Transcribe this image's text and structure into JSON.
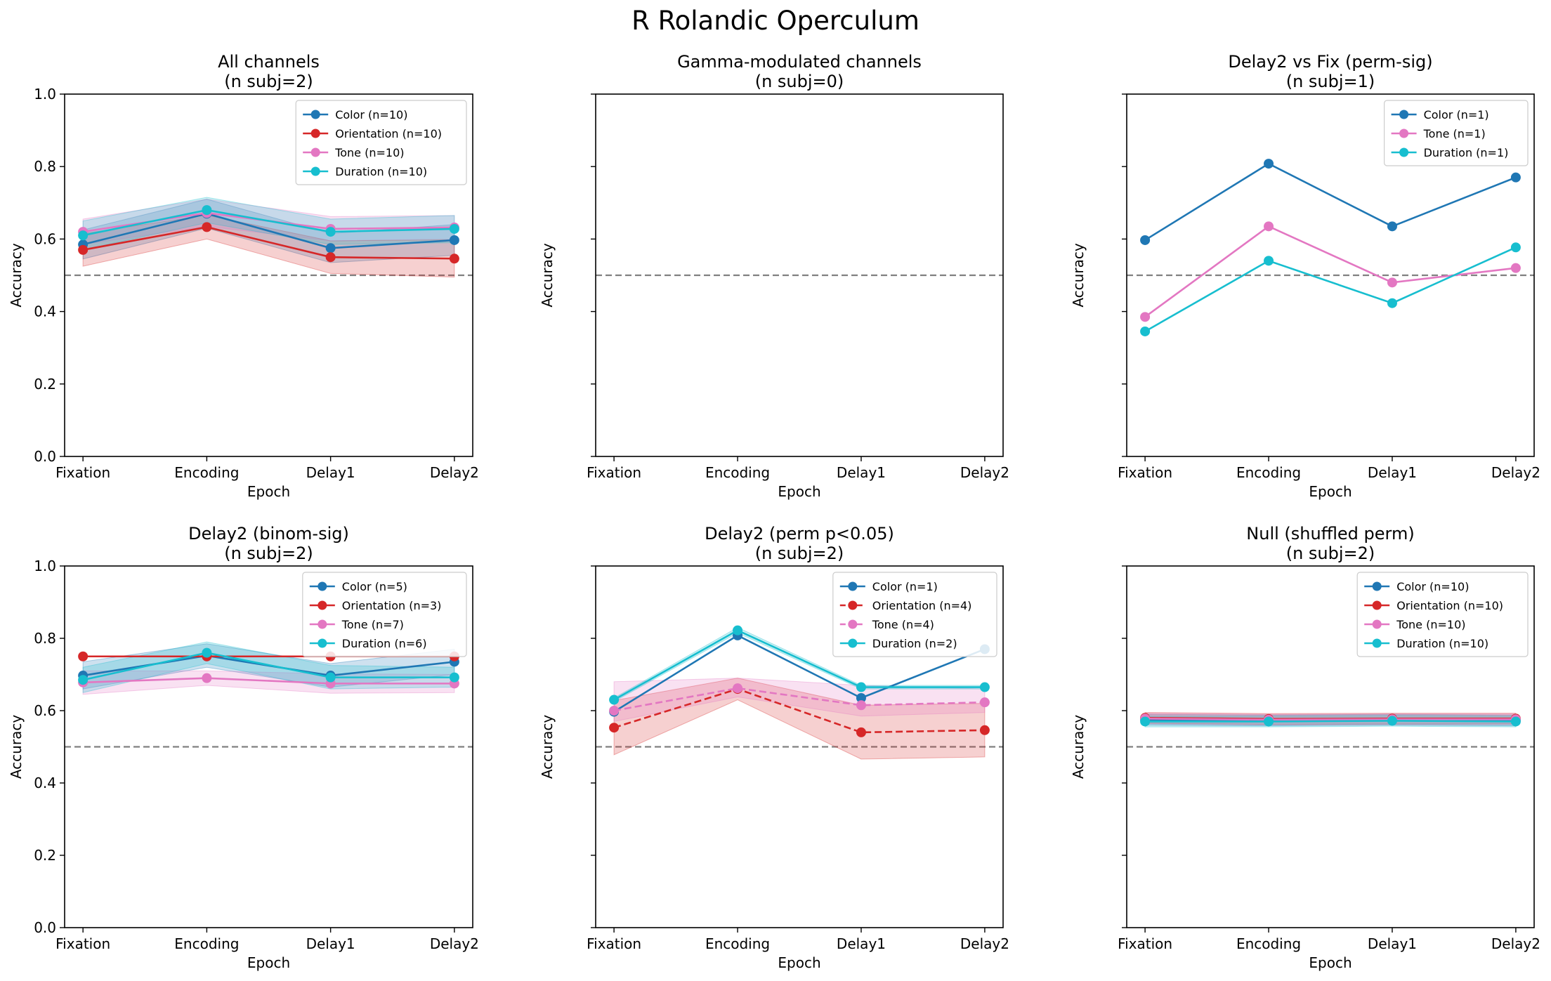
{
  "suptitle": "R Rolandic Operculum",
  "colors": {
    "Color": "#1f77b4",
    "Orientation": "#d62728",
    "Tone": "#e377c2",
    "Duration": "#17becf",
    "chance_line": "#808080"
  },
  "chart_data": [
    {
      "type": "line",
      "title": [
        "All channels",
        "(n subj=2)"
      ],
      "xlabel": "Epoch",
      "ylabel": "Accuracy",
      "categories": [
        "Fixation",
        "Encoding",
        "Delay1",
        "Delay2"
      ],
      "ylim": [
        0,
        1
      ],
      "yticks": [
        "0.0",
        "0.2",
        "0.4",
        "0.6",
        "0.8",
        "1.0"
      ],
      "chance": 0.5,
      "legend": "top-right",
      "series": [
        {
          "name": "Color (n=10)",
          "key": "Color",
          "dashed": false,
          "values": [
            0.585,
            0.67,
            0.575,
            0.597
          ],
          "band": [
            [
              0.545,
              0.625
            ],
            [
              0.63,
              0.71
            ],
            [
              0.535,
              0.615
            ],
            [
              0.555,
              0.64
            ]
          ]
        },
        {
          "name": "Orientation (n=10)",
          "key": "Orientation",
          "dashed": false,
          "values": [
            0.57,
            0.633,
            0.55,
            0.546
          ],
          "band": [
            [
              0.525,
              0.615
            ],
            [
              0.6,
              0.666
            ],
            [
              0.505,
              0.595
            ],
            [
              0.495,
              0.598
            ]
          ]
        },
        {
          "name": "Tone (n=10)",
          "key": "Tone",
          "dashed": false,
          "values": [
            0.62,
            0.672,
            0.628,
            0.632
          ],
          "band": [
            [
              0.585,
              0.655
            ],
            [
              0.635,
              0.71
            ],
            [
              0.595,
              0.662
            ],
            [
              0.6,
              0.665
            ]
          ]
        },
        {
          "name": "Duration (n=10)",
          "key": "Duration",
          "dashed": false,
          "values": [
            0.61,
            0.68,
            0.62,
            0.628
          ],
          "band": [
            [
              0.57,
              0.65
            ],
            [
              0.645,
              0.715
            ],
            [
              0.585,
              0.655
            ],
            [
              0.59,
              0.665
            ]
          ]
        }
      ]
    },
    {
      "type": "line",
      "title": [
        "Gamma-modulated channels",
        "(n subj=0)"
      ],
      "xlabel": "Epoch",
      "ylabel": "Accuracy",
      "categories": [
        "Fixation",
        "Encoding",
        "Delay1",
        "Delay2"
      ],
      "ylim": [
        0,
        1
      ],
      "yticks": [
        "",
        "",
        "",
        "",
        "",
        ""
      ],
      "chance": 0.5,
      "legend": "",
      "series": []
    },
    {
      "type": "line",
      "title": [
        "Delay2 vs Fix (perm-sig)",
        "(n subj=1)"
      ],
      "xlabel": "Epoch",
      "ylabel": "Accuracy",
      "categories": [
        "Fixation",
        "Encoding",
        "Delay1",
        "Delay2"
      ],
      "ylim": [
        0,
        1
      ],
      "yticks": [
        "",
        "",
        "",
        "",
        "",
        ""
      ],
      "chance": 0.5,
      "legend": "top-right",
      "series": [
        {
          "name": "Color (n=1)",
          "key": "Color",
          "dashed": false,
          "values": [
            0.597,
            0.808,
            0.635,
            0.77
          ],
          "band": null
        },
        {
          "name": "Tone (n=1)",
          "key": "Tone",
          "dashed": false,
          "values": [
            0.385,
            0.635,
            0.48,
            0.52
          ],
          "band": null
        },
        {
          "name": "Duration (n=1)",
          "key": "Duration",
          "dashed": false,
          "values": [
            0.345,
            0.54,
            0.423,
            0.577
          ],
          "band": null
        }
      ]
    },
    {
      "type": "line",
      "title": [
        "Delay2 (binom-sig)",
        "(n subj=2)"
      ],
      "xlabel": "Epoch",
      "ylabel": "Accuracy",
      "categories": [
        "Fixation",
        "Encoding",
        "Delay1",
        "Delay2"
      ],
      "ylim": [
        0,
        1
      ],
      "yticks": [
        "0.0",
        "0.2",
        "0.4",
        "0.6",
        "0.8",
        "1.0"
      ],
      "chance": 0.5,
      "legend": "top-right",
      "series": [
        {
          "name": "Color (n=5)",
          "key": "Color",
          "dashed": false,
          "values": [
            0.697,
            0.752,
            0.697,
            0.735
          ],
          "band": [
            [
              0.66,
              0.735
            ],
            [
              0.72,
              0.785
            ],
            [
              0.665,
              0.73
            ],
            [
              0.7,
              0.77
            ]
          ]
        },
        {
          "name": "Orientation (n=3)",
          "key": "Orientation",
          "dashed": false,
          "values": [
            0.75,
            0.75,
            0.75,
            0.75
          ],
          "band": null
        },
        {
          "name": "Tone (n=7)",
          "key": "Tone",
          "dashed": false,
          "values": [
            0.678,
            0.69,
            0.675,
            0.675
          ],
          "band": [
            [
              0.645,
              0.71
            ],
            [
              0.67,
              0.71
            ],
            [
              0.648,
              0.702
            ],
            [
              0.65,
              0.7
            ]
          ]
        },
        {
          "name": "Duration (n=6)",
          "key": "Duration",
          "dashed": false,
          "values": [
            0.685,
            0.76,
            0.692,
            0.692
          ],
          "band": [
            [
              0.65,
              0.72
            ],
            [
              0.73,
              0.79
            ],
            [
              0.66,
              0.725
            ],
            [
              0.665,
              0.72
            ]
          ]
        }
      ]
    },
    {
      "type": "line",
      "title": [
        "Delay2 (perm p<0.05)",
        "(n subj=2)"
      ],
      "xlabel": "Epoch",
      "ylabel": "Accuracy",
      "categories": [
        "Fixation",
        "Encoding",
        "Delay1",
        "Delay2"
      ],
      "ylim": [
        0,
        1
      ],
      "yticks": [
        "",
        "",
        "",
        "",
        "",
        ""
      ],
      "chance": 0.5,
      "legend": "top-right",
      "series": [
        {
          "name": "Color (n=1)",
          "key": "Color",
          "dashed": false,
          "values": [
            0.597,
            0.808,
            0.635,
            0.77
          ],
          "band": null
        },
        {
          "name": "Orientation (n=4)",
          "key": "Orientation",
          "dashed": true,
          "values": [
            0.553,
            0.66,
            0.54,
            0.546
          ],
          "band": [
            [
              0.478,
              0.628
            ],
            [
              0.63,
              0.69
            ],
            [
              0.466,
              0.615
            ],
            [
              0.472,
              0.62
            ]
          ]
        },
        {
          "name": "Tone (n=4)",
          "key": "Tone",
          "dashed": true,
          "values": [
            0.6,
            0.662,
            0.615,
            0.623
          ],
          "band": [
            [
              0.57,
              0.68
            ],
            [
              0.638,
              0.69
            ],
            [
              0.585,
              0.67
            ],
            [
              0.595,
              0.66
            ]
          ]
        },
        {
          "name": "Duration (n=2)",
          "key": "Duration",
          "dashed": false,
          "values": [
            0.63,
            0.822,
            0.665,
            0.665
          ],
          "band": [
            [
              0.625,
              0.635
            ],
            [
              0.815,
              0.83
            ],
            [
              0.66,
              0.67
            ],
            [
              0.66,
              0.67
            ]
          ]
        }
      ]
    },
    {
      "type": "line",
      "title": [
        "Null (shuffled perm)",
        "(n subj=2)"
      ],
      "xlabel": "Epoch",
      "ylabel": "Accuracy",
      "categories": [
        "Fixation",
        "Encoding",
        "Delay1",
        "Delay2"
      ],
      "ylim": [
        0,
        1
      ],
      "yticks": [
        "",
        "",
        "",
        "",
        "",
        ""
      ],
      "chance": 0.5,
      "legend": "top-right",
      "series": [
        {
          "name": "Color (n=10)",
          "key": "Color",
          "dashed": false,
          "values": [
            0.575,
            0.573,
            0.575,
            0.573
          ],
          "band": [
            [
              0.56,
              0.59
            ],
            [
              0.558,
              0.588
            ],
            [
              0.56,
              0.59
            ],
            [
              0.558,
              0.588
            ]
          ]
        },
        {
          "name": "Orientation (n=10)",
          "key": "Orientation",
          "dashed": false,
          "values": [
            0.58,
            0.577,
            0.578,
            0.578
          ],
          "band": [
            [
              0.565,
              0.595
            ],
            [
              0.562,
              0.592
            ],
            [
              0.563,
              0.593
            ],
            [
              0.563,
              0.593
            ]
          ]
        },
        {
          "name": "Tone (n=10)",
          "key": "Tone",
          "dashed": false,
          "values": [
            0.578,
            0.575,
            0.576,
            0.576
          ],
          "band": [
            [
              0.563,
              0.593
            ],
            [
              0.56,
              0.59
            ],
            [
              0.561,
              0.591
            ],
            [
              0.561,
              0.591
            ]
          ]
        },
        {
          "name": "Duration (n=10)",
          "key": "Duration",
          "dashed": false,
          "values": [
            0.57,
            0.57,
            0.572,
            0.57
          ],
          "band": [
            [
              0.555,
              0.585
            ],
            [
              0.555,
              0.585
            ],
            [
              0.557,
              0.587
            ],
            [
              0.555,
              0.585
            ]
          ]
        }
      ]
    }
  ]
}
